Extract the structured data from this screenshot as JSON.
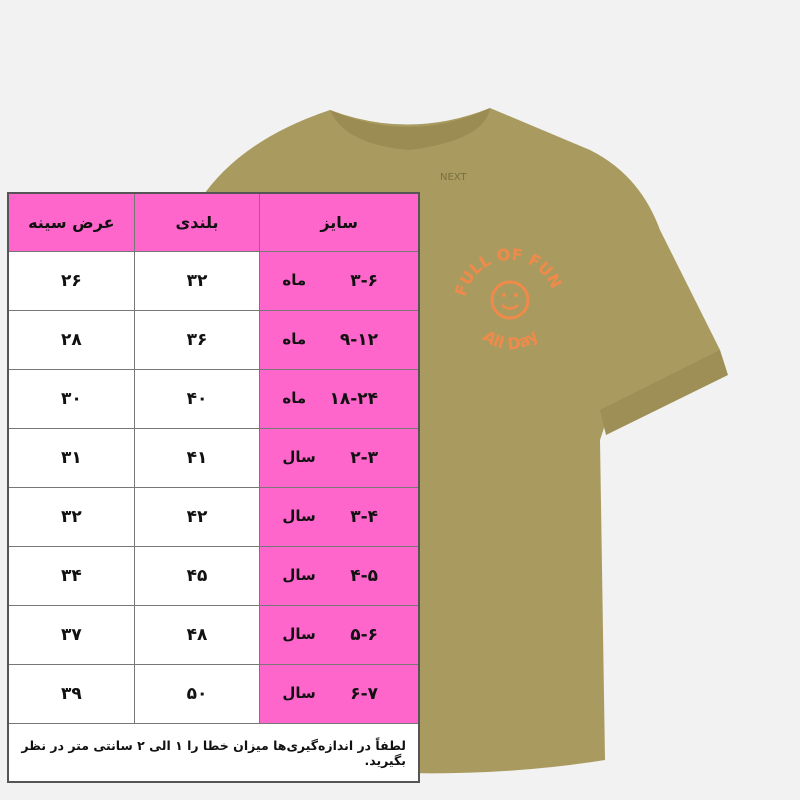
{
  "colors": {
    "header_bg": "#ff66cc",
    "shirt": "#a99b5f",
    "print": "#f08a4b"
  },
  "shirt_print": {
    "top_text": "FULL OF FUN",
    "bottom_text": "All Day",
    "brand_label": "NEXT"
  },
  "table": {
    "headers": {
      "size": "سایز",
      "height": "بلندی",
      "chest": "عرض سینه"
    },
    "rows": [
      {
        "size": "۳-۶",
        "unit": "ماه",
        "height": "۳۲",
        "chest": "۲۶"
      },
      {
        "size": "۹-۱۲",
        "unit": "ماه",
        "height": "۳۶",
        "chest": "۲۸"
      },
      {
        "size": "۱۸-۲۴",
        "unit": "ماه",
        "height": "۴۰",
        "chest": "۳۰"
      },
      {
        "size": "۲-۳",
        "unit": "سال",
        "height": "۴۱",
        "chest": "۳۱"
      },
      {
        "size": "۳-۴",
        "unit": "سال",
        "height": "۴۲",
        "chest": "۳۲"
      },
      {
        "size": "۴-۵",
        "unit": "سال",
        "height": "۴۵",
        "chest": "۳۴"
      },
      {
        "size": "۵-۶",
        "unit": "سال",
        "height": "۴۸",
        "chest": "۳۷"
      },
      {
        "size": "۶-۷",
        "unit": "سال",
        "height": "۵۰",
        "chest": "۳۹"
      }
    ],
    "note": "لطفاً در اندازه‌گیری‌ها میزان خطا را ۱ الی ۲ سانتی متر در نظر بگیرید."
  }
}
